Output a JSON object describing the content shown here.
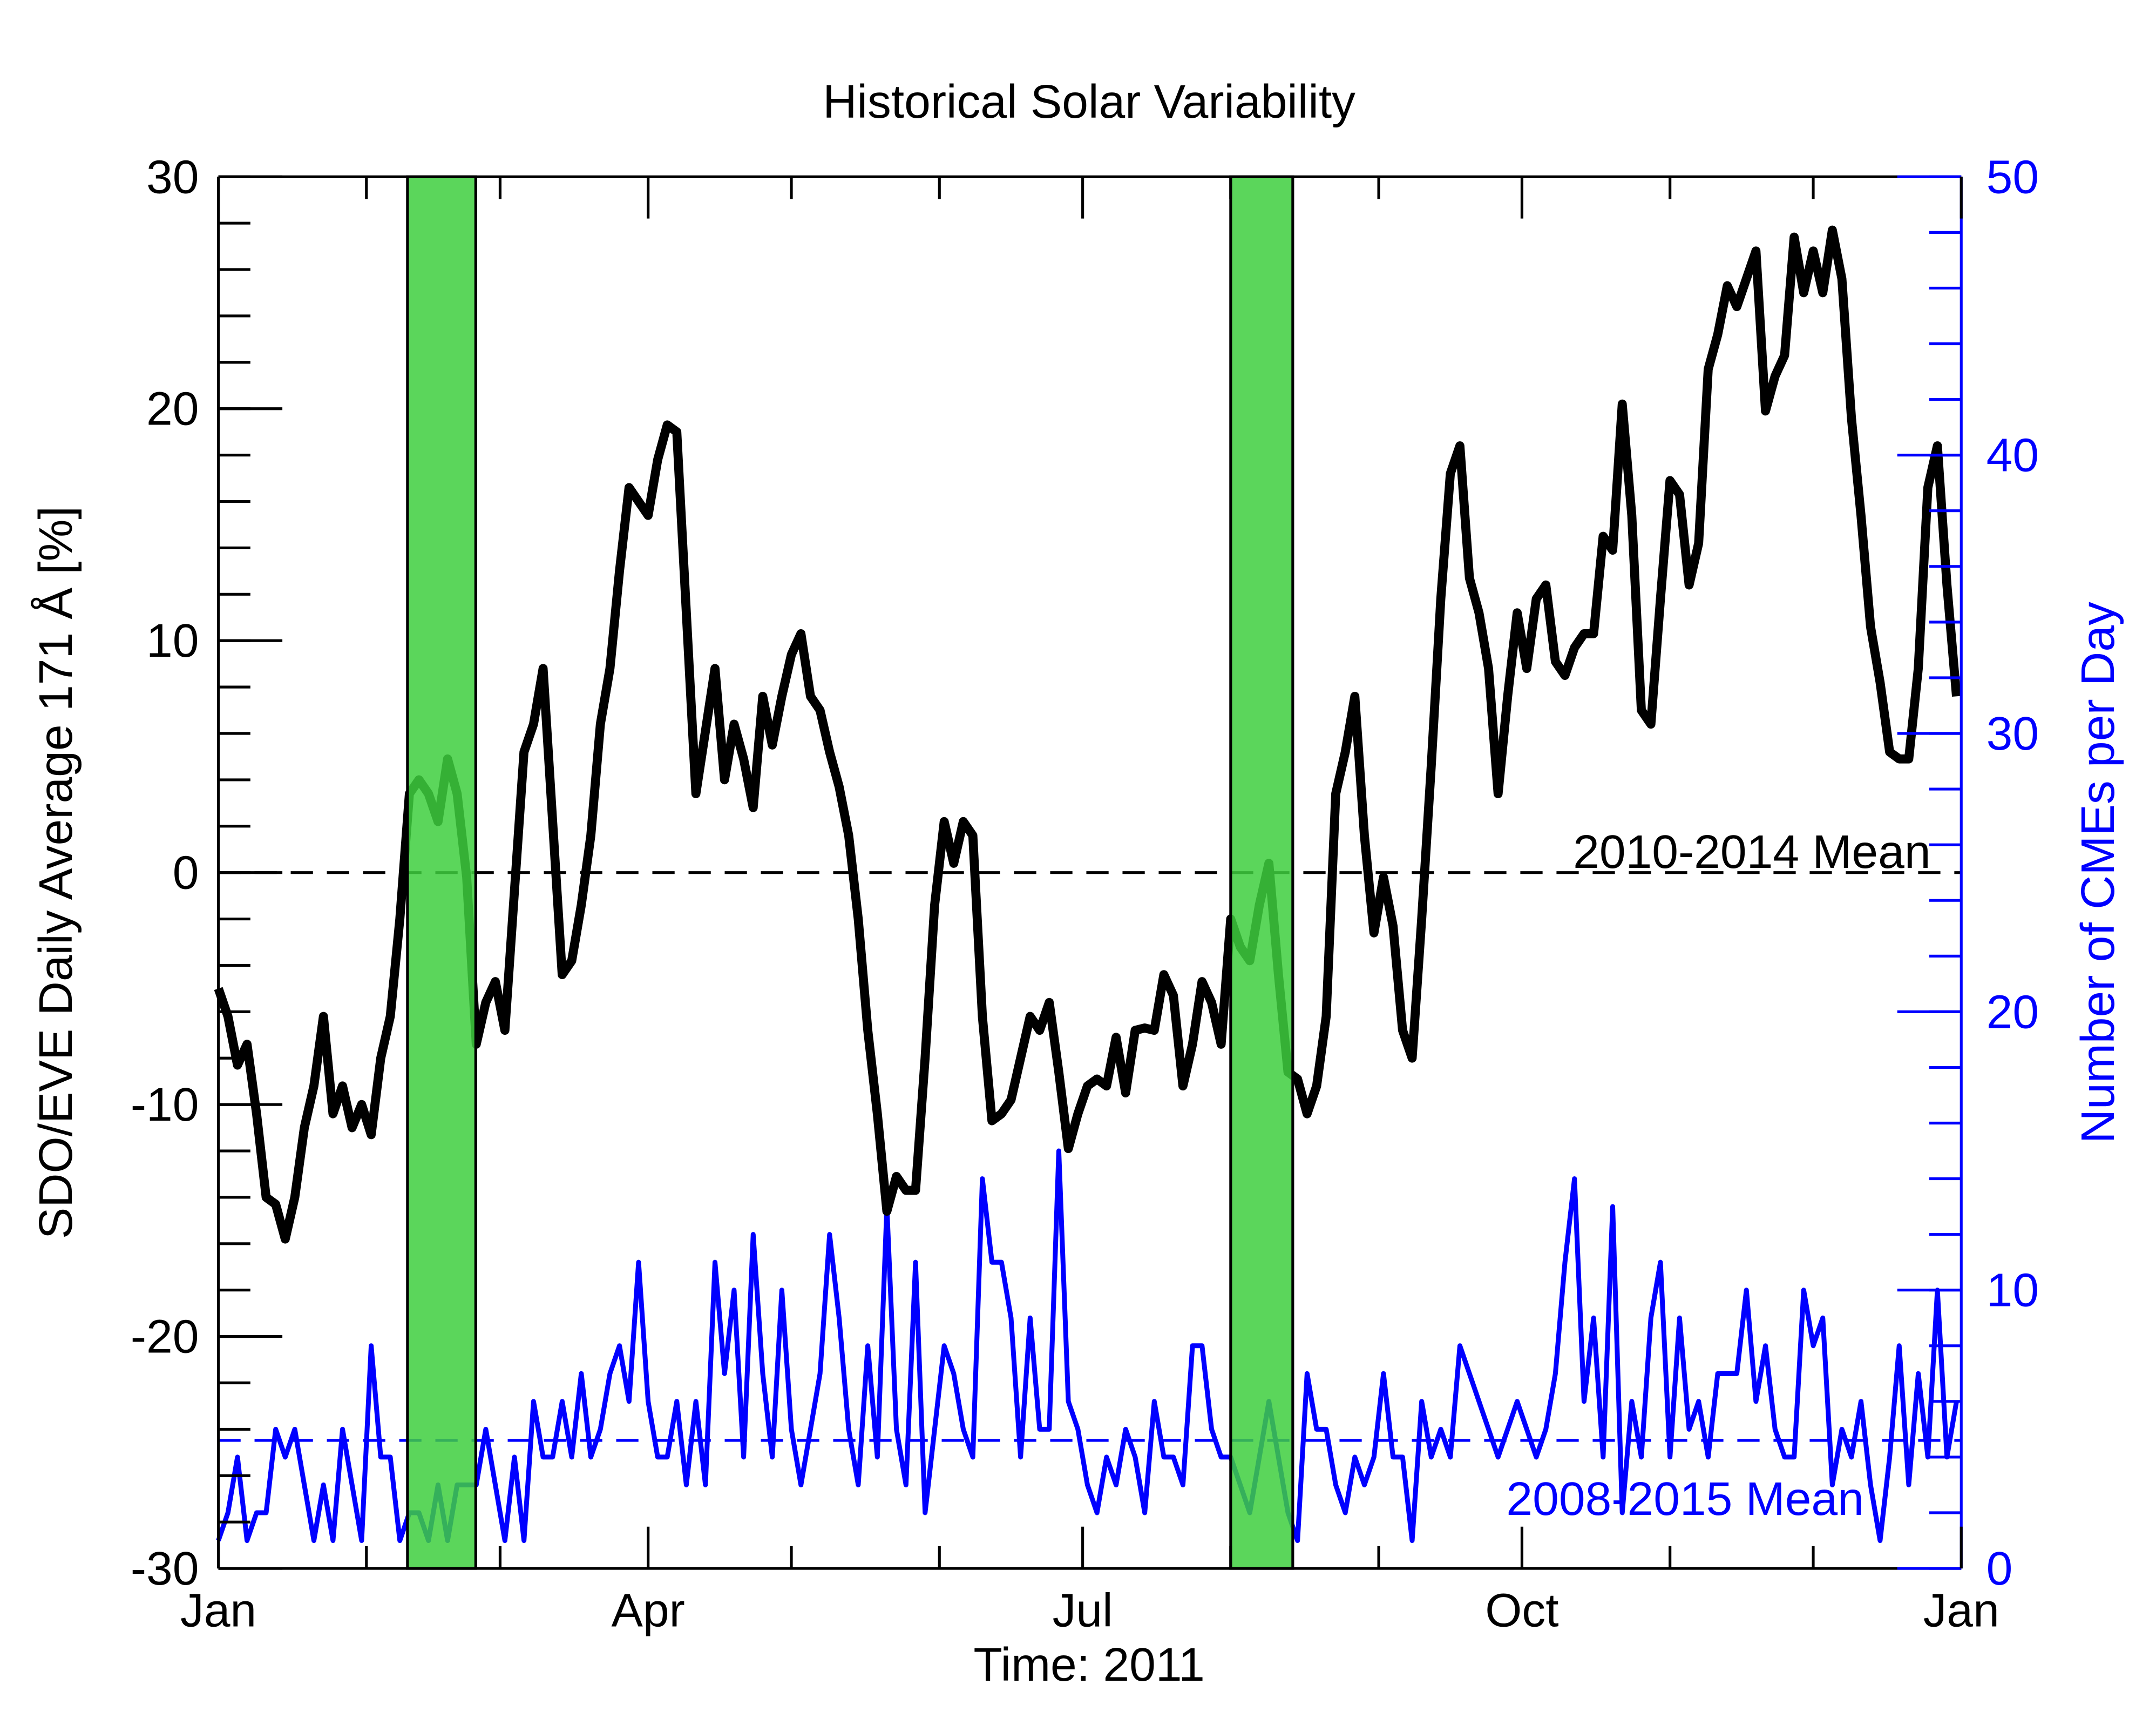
{
  "chart_data": {
    "type": "line",
    "title": "Historical Solar Variability",
    "xlabel": "Time: 2011",
    "ylabel": "SDO/EVE Daily Average 171 Å [%]",
    "y2label": "Number of CMEs per Day",
    "xlim": [
      0,
      365
    ],
    "xticks": [
      {
        "value": 0,
        "label": "Jan"
      },
      {
        "value": 90,
        "label": "Apr"
      },
      {
        "value": 181,
        "label": "Jul"
      },
      {
        "value": 273,
        "label": "Oct"
      },
      {
        "value": 365,
        "label": "Jan"
      }
    ],
    "xminorticks": [
      31,
      59,
      120,
      151,
      212,
      243,
      304,
      334
    ],
    "ylim": [
      -30,
      30
    ],
    "yticks": [
      -30,
      -20,
      -10,
      0,
      10,
      20,
      30
    ],
    "yminor_step": 2,
    "y2lim": [
      0,
      50
    ],
    "y2ticks": [
      0,
      10,
      20,
      30,
      40,
      50
    ],
    "y2minor_step": 2,
    "y2color": "#0000ff",
    "spans": [
      [
        39.6,
        53.9
      ],
      [
        212,
        225
      ]
    ],
    "span_color": "#3ecf3e",
    "hlines": [
      {
        "value": 0,
        "axis": "y",
        "label": "2010-2014 Mean",
        "color": "#000000"
      },
      {
        "value": 4.6,
        "axis": "y2",
        "label": "2008-2015 Mean",
        "color": "#0000ff"
      }
    ],
    "x": [
      0,
      2,
      4,
      6,
      8,
      10,
      12,
      14,
      16,
      18,
      20,
      22,
      24,
      26,
      28,
      30,
      32,
      34,
      36,
      38,
      40,
      42,
      44,
      46,
      48,
      50,
      52,
      54,
      56,
      58,
      60,
      62,
      64,
      66,
      68,
      70,
      72,
      74,
      76,
      78,
      80,
      82,
      84,
      86,
      88,
      90,
      92,
      94,
      96,
      98,
      100,
      102,
      104,
      106,
      108,
      110,
      112,
      114,
      116,
      118,
      120,
      122,
      124,
      126,
      128,
      130,
      132,
      134,
      136,
      138,
      140,
      142,
      144,
      146,
      148,
      150,
      152,
      154,
      156,
      158,
      160,
      162,
      164,
      166,
      168,
      170,
      172,
      174,
      176,
      178,
      180,
      182,
      184,
      186,
      188,
      190,
      192,
      194,
      196,
      198,
      200,
      202,
      204,
      206,
      208,
      210,
      212,
      214,
      216,
      218,
      220,
      222,
      224,
      226,
      228,
      230,
      232,
      234,
      236,
      238,
      240,
      242,
      244,
      246,
      248,
      250,
      252,
      254,
      256,
      258,
      260,
      262,
      264,
      266,
      268,
      270,
      272,
      274,
      276,
      278,
      280,
      282,
      284,
      286,
      288,
      290,
      292,
      294,
      296,
      298,
      300,
      302,
      304,
      306,
      308,
      310,
      312,
      314,
      316,
      318,
      320,
      322,
      324,
      326,
      328,
      330,
      332,
      334,
      336,
      338,
      340,
      342,
      344,
      346,
      348,
      350,
      352,
      354,
      356,
      358,
      360,
      362,
      364
    ],
    "series": [
      {
        "color": "#000000",
        "axis": "y",
        "values": [
          -5,
          -6.2,
          -8.3,
          -7.4,
          -10.4,
          -14,
          -14.3,
          -15.8,
          -14,
          -11,
          -9.2,
          -6.2,
          -10.4,
          -9.2,
          -11,
          -10,
          -11.3,
          -8,
          -6.2,
          -2,
          3.4,
          4,
          3.4,
          2.2,
          4.9,
          3.4,
          -0.2,
          -7.4,
          -5.6,
          -4.7,
          -6.8,
          -0.8,
          5.2,
          6.4,
          8.8,
          2.2,
          -4.4,
          -3.8,
          -1.4,
          1.6,
          6.4,
          8.8,
          13,
          16.6,
          16,
          15.4,
          17.8,
          19.3,
          19,
          11.2,
          3.4,
          6.1,
          8.8,
          4,
          6.4,
          4.9,
          2.8,
          7.6,
          5.5,
          7.6,
          9.4,
          10.3,
          7.6,
          7,
          5.2,
          3.7,
          1.6,
          -2,
          -6.8,
          -10.4,
          -14.6,
          -13.1,
          -13.7,
          -13.7,
          -8,
          -1.4,
          2.2,
          0.4,
          2.2,
          1.6,
          -6.2,
          -10.7,
          -10.4,
          -9.8,
          -8,
          -6.2,
          -6.8,
          -5.6,
          -8.6,
          -11.9,
          -10.4,
          -9.2,
          -8.9,
          -9.2,
          -7.1,
          -9.5,
          -6.8,
          -6.7,
          -6.8,
          -4.4,
          -5.3,
          -9.2,
          -7.4,
          -4.7,
          -5.6,
          -7.4,
          -2,
          -3.2,
          -3.8,
          -1.4,
          0.4,
          -4.4,
          -8.6,
          -8.9,
          -10.4,
          -9.2,
          -6.2,
          3.4,
          5.2,
          7.6,
          1.6,
          -2.6,
          -0.2,
          -2.3,
          -6.8,
          -8,
          -2,
          4.6,
          11.8,
          17.2,
          18.4,
          12.7,
          11.2,
          8.8,
          3.4,
          7.6,
          11.2,
          8.8,
          11.8,
          12.4,
          9.1,
          8.5,
          9.7,
          10.3,
          10.3,
          14.5,
          13.9,
          20.2,
          15.4,
          7,
          6.4,
          11.8,
          16.9,
          16.3,
          12.4,
          14.2,
          21.7,
          23.2,
          25.3,
          24.4,
          25.6,
          26.8,
          19.9,
          21.4,
          22.3,
          27.4,
          25,
          26.8,
          25,
          27.7,
          25.6,
          19.6,
          15.4,
          10.6,
          8.2,
          5.2,
          4.9,
          4.9,
          8.8,
          16.6,
          18.4,
          12.4,
          7.6
        ]
      },
      {
        "color": "#0000ff",
        "axis": "y2",
        "values": [
          1,
          2,
          4,
          1,
          2,
          2,
          5,
          4,
          5,
          3,
          1,
          3,
          1,
          5,
          3,
          1,
          8,
          4,
          4,
          1,
          2,
          2,
          1,
          3,
          1,
          3,
          3,
          3,
          5,
          3,
          1,
          4,
          1,
          6,
          4,
          4,
          6,
          4,
          7,
          4,
          5,
          7,
          8,
          6,
          11,
          6,
          4,
          4,
          6,
          3,
          6,
          3,
          11,
          7,
          10,
          4,
          12,
          7,
          4,
          10,
          5,
          3,
          5,
          7,
          12,
          9,
          5,
          3,
          8,
          4,
          13,
          5,
          3,
          11,
          2,
          5,
          8,
          7,
          5,
          4,
          14,
          11,
          11,
          9,
          4,
          9,
          5,
          5,
          15,
          6,
          5,
          3,
          2,
          4,
          3,
          5,
          4,
          2,
          6,
          4,
          4,
          3,
          8,
          8,
          5,
          4,
          4,
          3,
          2,
          4,
          6,
          4,
          2,
          1,
          7,
          5,
          5,
          3,
          2,
          4,
          3,
          4,
          7,
          4,
          4,
          1,
          6,
          4,
          5,
          4,
          8,
          7,
          6,
          5,
          4,
          5,
          6,
          5,
          4,
          5,
          7,
          11,
          14,
          6,
          9,
          4,
          13,
          2,
          6,
          4,
          9,
          11,
          4,
          9,
          5,
          6,
          4,
          7,
          7,
          7,
          10,
          6,
          8,
          5,
          4,
          4,
          10,
          8,
          9,
          3,
          5,
          4,
          6,
          3,
          1,
          4,
          8,
          3,
          7,
          4,
          10,
          4,
          6
        ]
      }
    ]
  }
}
